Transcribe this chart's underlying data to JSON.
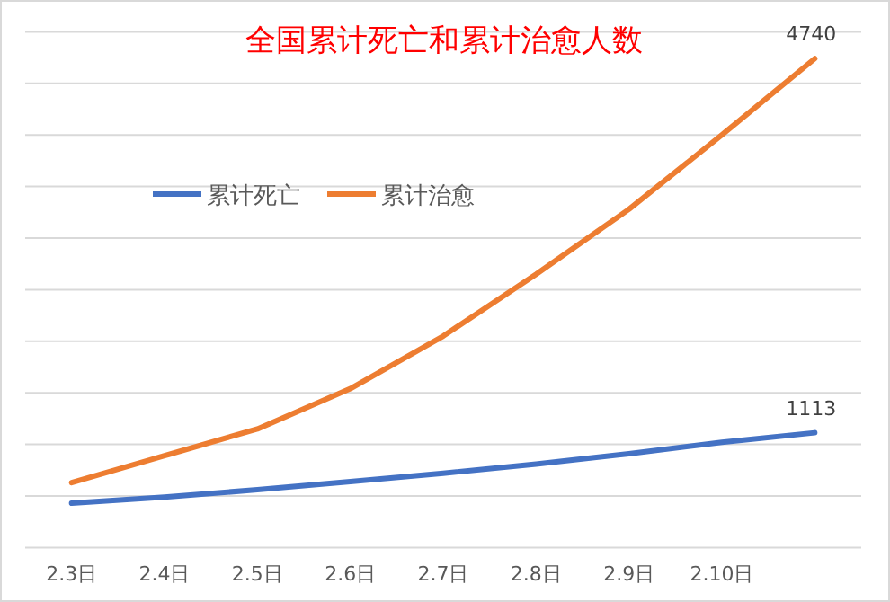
{
  "chart_data": {
    "type": "line",
    "title": "全国累计死亡和累计治愈人数",
    "grid": "y",
    "legend": "top left",
    "marker": "none",
    "line_style": "solid",
    "ylim": [
      0,
      5000
    ],
    "yticks": [
      {
        "value": 0,
        "label": null
      },
      {
        "value": 500,
        "label": null
      },
      {
        "value": 1000,
        "label": null
      },
      {
        "value": 1500,
        "label": null
      },
      {
        "value": 2000,
        "label": null
      },
      {
        "value": 2500,
        "label": null
      },
      {
        "value": 3000,
        "label": null
      },
      {
        "value": 3500,
        "label": null
      },
      {
        "value": 4000,
        "label": null
      },
      {
        "value": 4500,
        "label": null
      },
      {
        "value": 5000,
        "label": null
      }
    ],
    "categories": [
      "2.3日",
      "2.4日",
      "2.5日",
      "2.6日",
      "2.7日",
      "2.8日",
      "2.9日",
      "2.10日",
      null
    ],
    "series": [
      {
        "name": "累计死亡",
        "color": "#4472c4",
        "values": [
          430,
          490,
          560,
          640,
          720,
          810,
          910,
          1020,
          1113
        ],
        "value_labels": [
          null,
          null,
          null,
          null,
          null,
          null,
          null,
          null,
          "1113"
        ]
      },
      {
        "name": "累计治愈",
        "color": "#ed7d31",
        "values": [
          630,
          890,
          1150,
          1540,
          2050,
          2650,
          3280,
          4000,
          4740
        ],
        "value_labels": [
          null,
          null,
          null,
          null,
          null,
          null,
          null,
          null,
          "4740"
        ]
      }
    ]
  }
}
